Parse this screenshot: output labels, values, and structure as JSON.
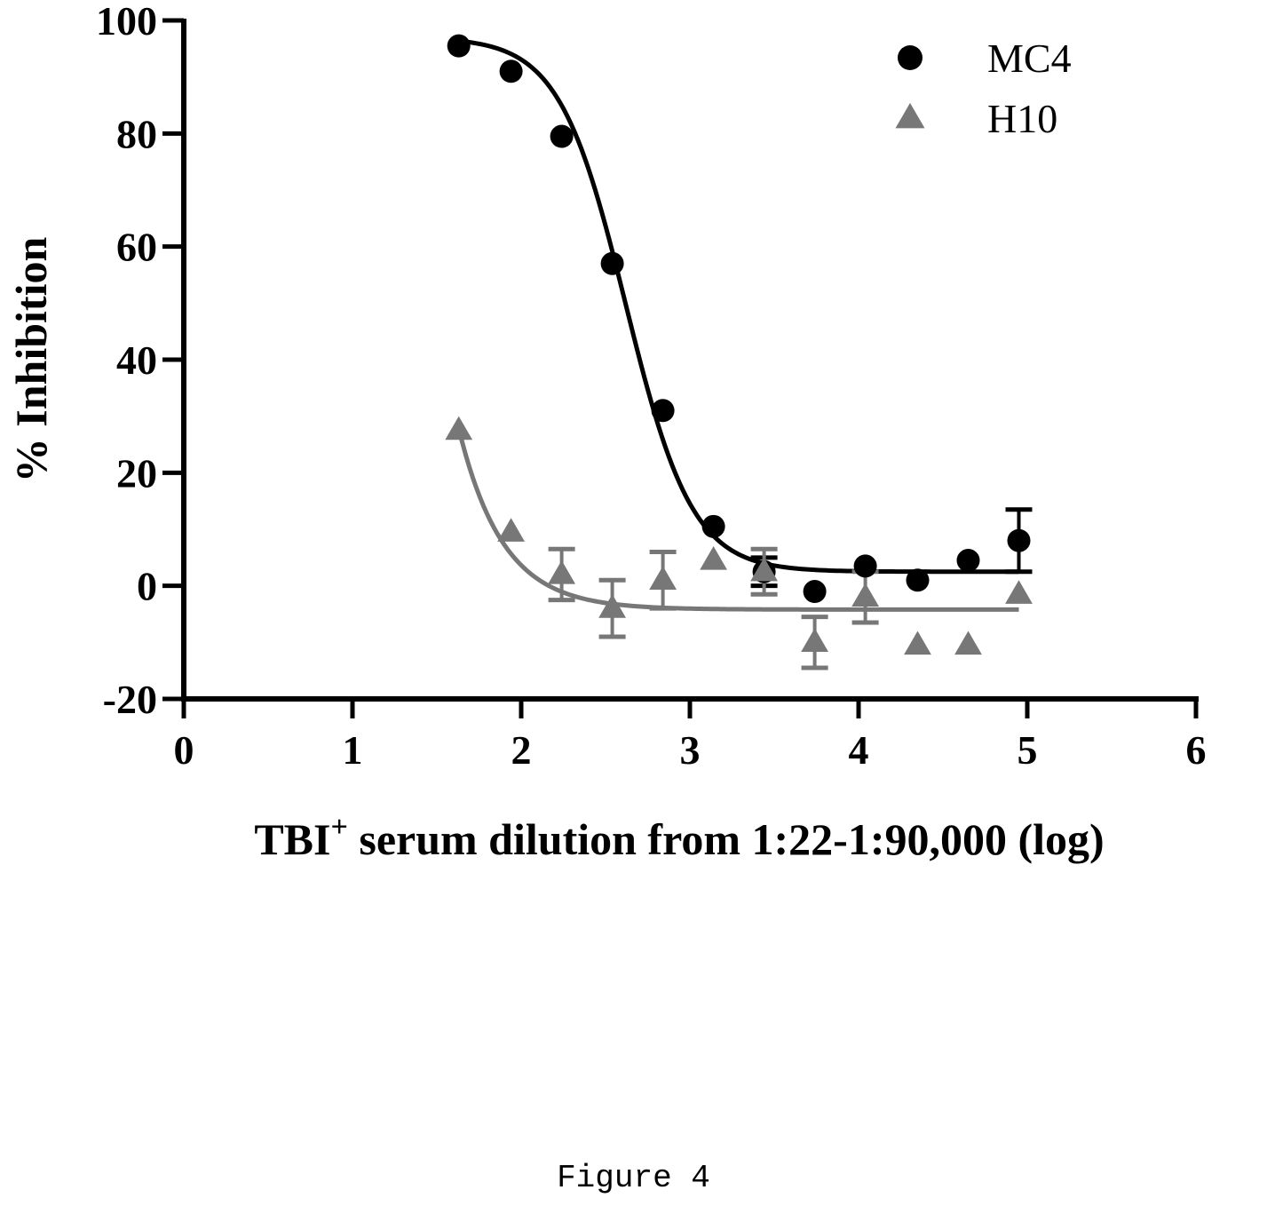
{
  "chart_data": {
    "type": "scatter",
    "title": "",
    "xlabel": "TBI",
    "xlabel_sup": "+",
    "xlabel_rest": " serum dilution from 1:22-1:90,000 (log)",
    "ylabel": "% Inhibition",
    "xlim": [
      0,
      6
    ],
    "ylim": [
      -20,
      100
    ],
    "xticks": [
      "0",
      "1",
      "2",
      "3",
      "4",
      "5",
      "6"
    ],
    "yticks": [
      "-20",
      "0",
      "20",
      "40",
      "60",
      "80",
      "100"
    ],
    "legend_position": "top-right",
    "series": [
      {
        "name": "MC4",
        "marker": "circle",
        "color": "#000000",
        "points": [
          {
            "x": 1.63,
            "y": 95.5
          },
          {
            "x": 1.94,
            "y": 91.0
          },
          {
            "x": 2.24,
            "y": 79.5
          },
          {
            "x": 2.54,
            "y": 57.0
          },
          {
            "x": 2.84,
            "y": 31.0
          },
          {
            "x": 3.14,
            "y": 10.5
          },
          {
            "x": 3.44,
            "y": 2.5,
            "err": 2.5
          },
          {
            "x": 3.74,
            "y": -1.0
          },
          {
            "x": 4.04,
            "y": 3.5
          },
          {
            "x": 4.35,
            "y": 1.0
          },
          {
            "x": 4.65,
            "y": 4.5
          },
          {
            "x": 4.95,
            "y": 8.0,
            "err": 5.5
          }
        ],
        "fit": {
          "bottom": 2.5,
          "top": 97.0,
          "logEC50": 2.62,
          "slope": -2.2,
          "xrange": [
            1.63,
            4.95
          ]
        }
      },
      {
        "name": "H10",
        "marker": "triangle",
        "color": "#777777",
        "points": [
          {
            "x": 1.63,
            "y": 27.5
          },
          {
            "x": 1.94,
            "y": 9.5
          },
          {
            "x": 2.24,
            "y": 2.0,
            "err": 4.5
          },
          {
            "x": 2.54,
            "y": -4.0,
            "err": 5.0
          },
          {
            "x": 2.84,
            "y": 1.0,
            "err": 5.0
          },
          {
            "x": 3.14,
            "y": 4.5
          },
          {
            "x": 3.44,
            "y": 2.5,
            "err": 4.0
          },
          {
            "x": 3.74,
            "y": -10.0,
            "err": 4.5
          },
          {
            "x": 4.04,
            "y": -2.0,
            "err": 4.5
          },
          {
            "x": 4.35,
            "y": -10.5
          },
          {
            "x": 4.65,
            "y": -10.5
          },
          {
            "x": 4.95,
            "y": -1.5
          }
        ],
        "fit": {
          "plateau": -4.2,
          "span": 32.0,
          "k": 3.8,
          "x0": 1.63,
          "xrange": [
            1.63,
            4.95
          ]
        }
      }
    ]
  },
  "caption": "Figure 4"
}
